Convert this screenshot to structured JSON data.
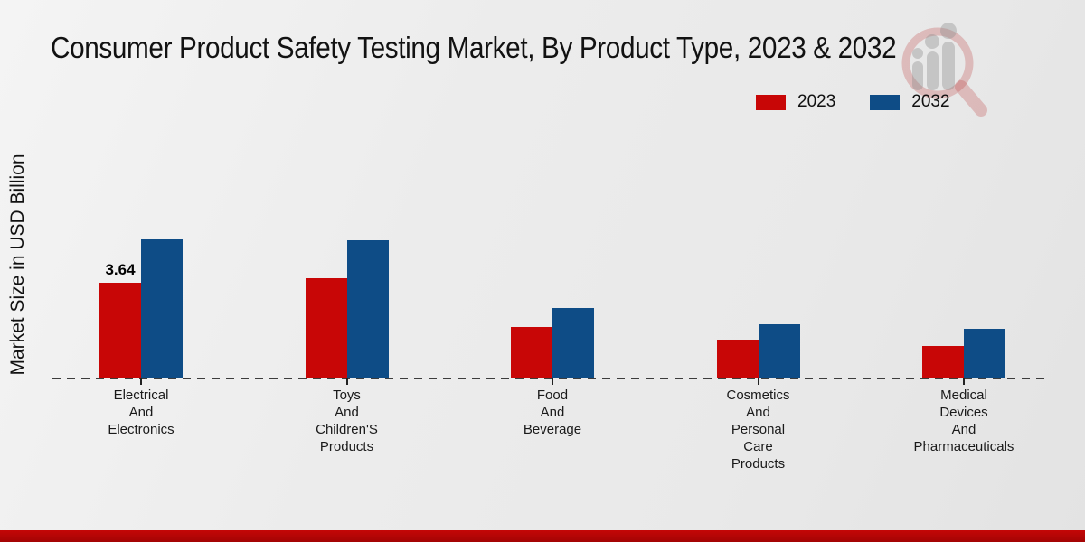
{
  "chart_data": {
    "type": "bar",
    "title": "Consumer Product Safety Testing Market, By Product Type, 2023 & 2032",
    "ylabel": "Market Size in USD Billion",
    "xlabel": "",
    "categories": [
      "Electrical\nAnd\nElectronics",
      "Toys\nAnd\nChildren'S\nProducts",
      "Food\nAnd\nBeverage",
      "Cosmetics\nAnd\nPersonal\nCare\nProducts",
      "Medical\nDevices\nAnd\nPharmaceuticals"
    ],
    "series": [
      {
        "name": "2023",
        "color": "#c80606",
        "values": [
          3.64,
          3.8,
          1.95,
          1.47,
          1.24
        ],
        "value_labels": [
          "3.64",
          "",
          "",
          "",
          ""
        ]
      },
      {
        "name": "2032",
        "color": "#0e4c86",
        "values": [
          5.3,
          5.26,
          2.68,
          2.06,
          1.89
        ],
        "value_labels": [
          "",
          "",
          "",
          "",
          ""
        ]
      }
    ],
    "ylim": [
      0,
      6.2
    ],
    "grid": false,
    "legend_position": "top-right",
    "baseline_style": "dashed",
    "y_axis_ticks_visible": false
  },
  "footer": {
    "accent_color": "#b00505"
  },
  "watermark": {
    "icon": "magnifier-bar-chart-logo",
    "ring_color": "rgba(190,70,70,0.28)",
    "bar_color": "rgba(140,140,140,0.38)"
  }
}
